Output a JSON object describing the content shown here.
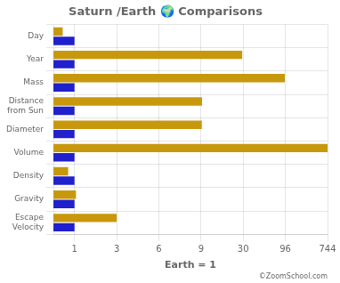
{
  "chart_data": {
    "type": "bar",
    "orientation": "horizontal",
    "title": "Saturn /Earth 🌍 Comparisons",
    "categories": [
      "Day",
      "Year",
      "Mass",
      "Distance\nfrom Sun",
      "Diameter",
      "Volume",
      "Density",
      "Gravity",
      "Escape\nVelocity"
    ],
    "series": [
      {
        "name": "Saturn",
        "color": "#C8980C",
        "values": [
          0.44,
          29.5,
          95.2,
          9.5,
          9.4,
          744,
          0.7,
          1.07,
          3.0
        ]
      },
      {
        "name": "Earth",
        "color": "#2020CC",
        "values": [
          1.0,
          1.0,
          1.0,
          1.0,
          1.0,
          1.0,
          1.0,
          1.0,
          1.0
        ]
      }
    ],
    "xlabel": "Earth = 1",
    "xlim": [
      0,
      744
    ],
    "xticks": [
      1,
      3,
      6,
      9,
      30,
      96,
      744
    ],
    "grid": true,
    "annotations": [
      "©ZoomSchool.com"
    ]
  }
}
